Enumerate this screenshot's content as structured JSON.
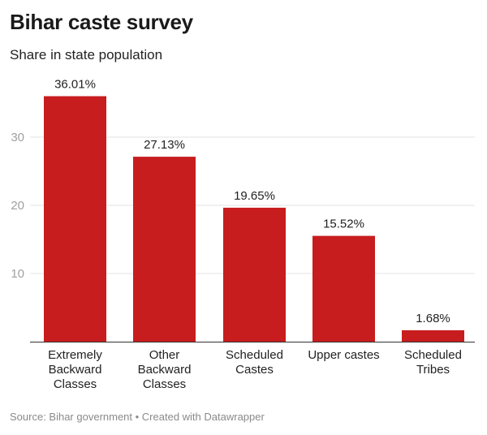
{
  "chart_data": {
    "type": "bar",
    "title": "Bihar caste survey",
    "subtitle": "Share in state population",
    "categories": [
      [
        "Extremely",
        "Backward",
        "Classes"
      ],
      [
        "Other",
        "Backward",
        "Classes"
      ],
      [
        "Scheduled",
        "Castes"
      ],
      [
        "Upper castes"
      ],
      [
        "Scheduled",
        "Tribes"
      ]
    ],
    "values": [
      36.01,
      27.13,
      19.65,
      15.52,
      1.68
    ],
    "value_labels": [
      "36.01%",
      "27.13%",
      "19.65%",
      "15.52%",
      "1.68%"
    ],
    "yticks": [
      10,
      20,
      30
    ],
    "ylim": [
      0,
      36.01
    ],
    "grid": true,
    "xlabel": "",
    "ylabel": "",
    "bar_color": "#c71d1e"
  },
  "footer": {
    "source": "Source: Bihar government • Created with Datawrapper"
  }
}
